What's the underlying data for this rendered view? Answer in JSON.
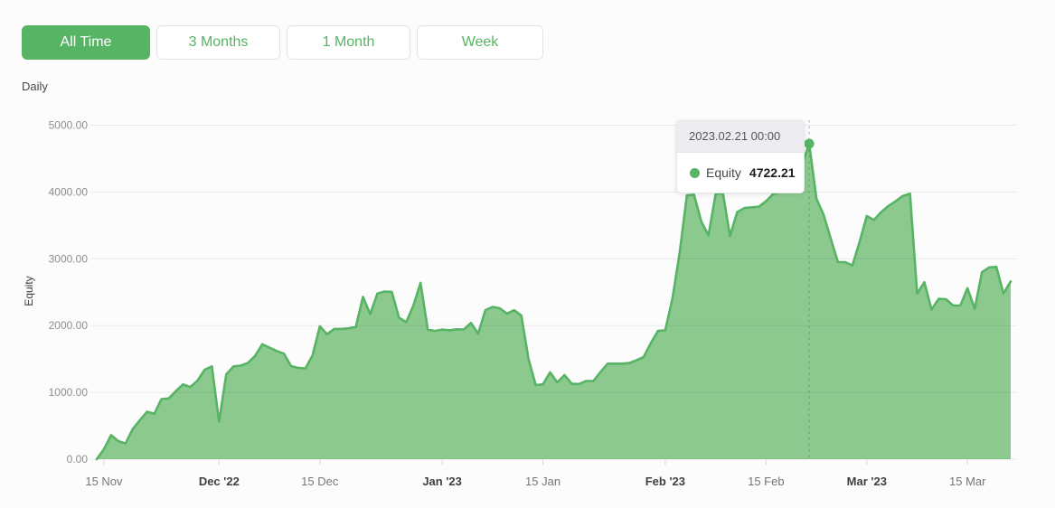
{
  "controls": {
    "buttons": [
      {
        "label": "All Time",
        "active": true
      },
      {
        "label": "3 Months",
        "active": false
      },
      {
        "label": "1 Month",
        "active": false
      },
      {
        "label": "Week",
        "active": false
      }
    ]
  },
  "chart": {
    "granularity_label": "Daily"
  },
  "tooltip": {
    "title": "2023.02.21 00:00",
    "series_label": "Equity",
    "value": "4722.21"
  },
  "colors": {
    "accent_green": "#57b464",
    "area_fill": "#8cc98f",
    "grid_line": "rgba(0,0,0,0.07)",
    "axis_tick": "#d8d8d8",
    "y_label_text": "#8d8d8d",
    "x_label_text": "#767676",
    "x_label_bold_text": "#404040",
    "dashed_cursor": "rgba(90,100,90,0.35)"
  },
  "chart_data": {
    "type": "area",
    "title": "",
    "xlabel": "",
    "ylabel": "Equity",
    "frequency": "daily",
    "start_date": "2022-11-14",
    "ylim": [
      0,
      5000
    ],
    "grid": true,
    "legend_position": "none",
    "y_ticks": [
      {
        "label": "5000.00",
        "value": 5000
      },
      {
        "label": "4000.00",
        "value": 4000
      },
      {
        "label": "3000.00",
        "value": 3000
      },
      {
        "label": "2000.00",
        "value": 2000
      },
      {
        "label": "1000.00",
        "value": 1000
      },
      {
        "label": "0.00",
        "value": 0
      }
    ],
    "x_ticks": [
      {
        "label": "15 Nov",
        "day": 1,
        "bold": false
      },
      {
        "label": "Dec '22",
        "day": 17,
        "bold": true
      },
      {
        "label": "15 Dec",
        "day": 31,
        "bold": false
      },
      {
        "label": "Jan '23",
        "day": 48,
        "bold": true
      },
      {
        "label": "15 Jan",
        "day": 62,
        "bold": false
      },
      {
        "label": "Feb '23",
        "day": 79,
        "bold": true
      },
      {
        "label": "15 Feb",
        "day": 93,
        "bold": false
      },
      {
        "label": "Mar '23",
        "day": 107,
        "bold": true
      },
      {
        "label": "15 Mar",
        "day": 121,
        "bold": false
      }
    ],
    "series": [
      {
        "name": "Equity",
        "values": [
          0,
          150,
          360,
          270,
          235,
          450,
          585,
          710,
          680,
          900,
          910,
          1020,
          1120,
          1080,
          1175,
          1340,
          1390,
          560,
          1270,
          1390,
          1400,
          1440,
          1545,
          1720,
          1670,
          1620,
          1580,
          1395,
          1365,
          1360,
          1555,
          1990,
          1870,
          1950,
          1950,
          1960,
          1980,
          2430,
          2170,
          2480,
          2510,
          2505,
          2120,
          2050,
          2300,
          2640,
          1940,
          1920,
          1940,
          1930,
          1945,
          1940,
          2040,
          1880,
          2230,
          2280,
          2260,
          2180,
          2230,
          2150,
          1500,
          1110,
          1120,
          1300,
          1150,
          1260,
          1130,
          1125,
          1170,
          1170,
          1305,
          1430,
          1430,
          1430,
          1440,
          1480,
          1530,
          1740,
          1920,
          1930,
          2410,
          3090,
          3950,
          3960,
          3560,
          3350,
          3970,
          3990,
          3340,
          3700,
          3760,
          3770,
          3780,
          3860,
          3970,
          4000,
          4050,
          4150,
          4400,
          4722.21,
          3900,
          3660,
          3300,
          2950,
          2950,
          2900,
          3250,
          3640,
          3580,
          3700,
          3790,
          3860,
          3940,
          3975,
          2480,
          2650,
          2240,
          2400,
          2395,
          2300,
          2300,
          2560,
          2250,
          2800,
          2870,
          2880,
          2480,
          2660
        ]
      }
    ],
    "highlight": {
      "index": 99,
      "value": 4722.21,
      "datetime_label": "2023.02.21 00:00"
    }
  }
}
